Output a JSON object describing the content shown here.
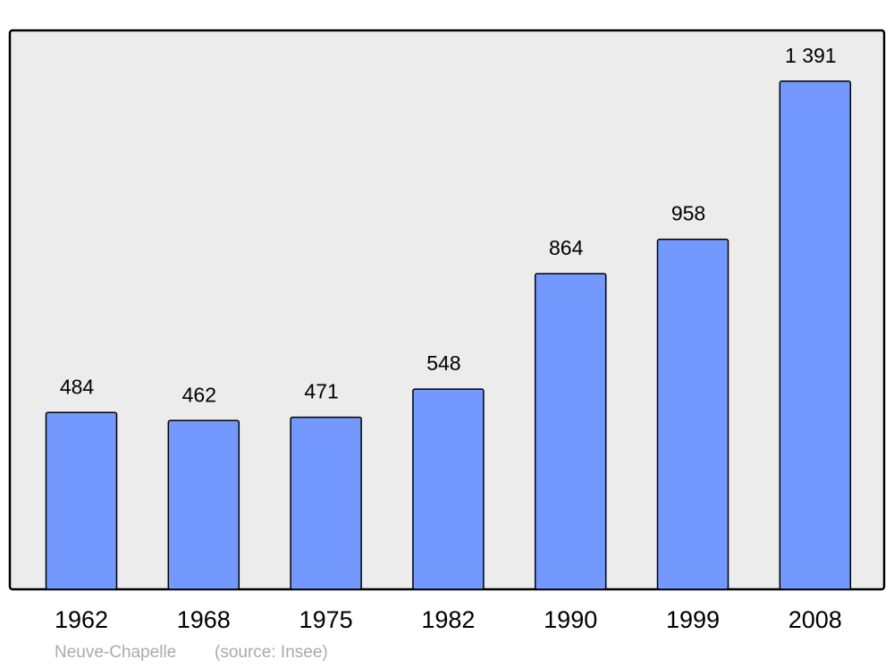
{
  "chart_data": {
    "type": "bar",
    "categories": [
      "1962",
      "1968",
      "1975",
      "1982",
      "1990",
      "1999",
      "2008"
    ],
    "values": [
      484,
      462,
      471,
      548,
      864,
      958,
      1391
    ],
    "value_labels": [
      "484",
      "462",
      "471",
      "548",
      "864",
      "958",
      "1 391"
    ],
    "color": "#7399ff",
    "ylim": [
      0,
      1530
    ],
    "caption": "Neuve-Chapelle",
    "source": "(source: Insee)"
  }
}
